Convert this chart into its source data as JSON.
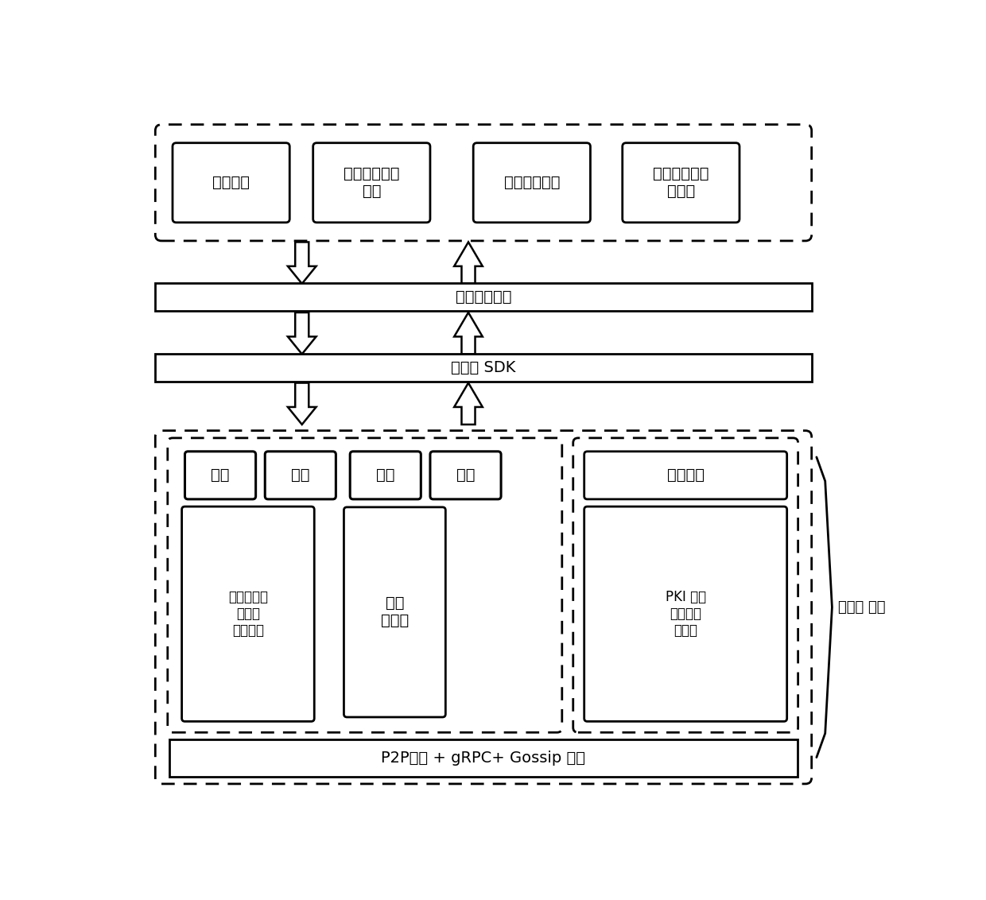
{
  "bg_color": "#ffffff",
  "text_color": "#000000",
  "fig_width": 12.4,
  "fig_height": 11.32,
  "top_boxes": [
    "贷主应用",
    "融资协同平台\n应用",
    "金融机构应用",
    "质检、保险等\n等应用"
  ],
  "middleware_label": "区块链中间层",
  "sdk_label": "区块链 SDK",
  "p2p_label": "P2P网络 + gRPC+ Gossip 协议",
  "bottom_label": "区块链 底层",
  "inner_top_boxes": [
    "账本",
    "交易",
    "事件",
    "链码"
  ],
  "inner_bottom_left_label": "区块链结构\n数据库\n共识机制",
  "inner_bottom_mid_label": "容器\n状态机",
  "inner_right_top_label": "权限管理",
  "inner_right_bottom_label": "PKI 体系\n数字证书\n加解密",
  "font_size_main": 14,
  "font_size_label": 14,
  "font_size_small": 12,
  "font_size_bottom_label": 13
}
